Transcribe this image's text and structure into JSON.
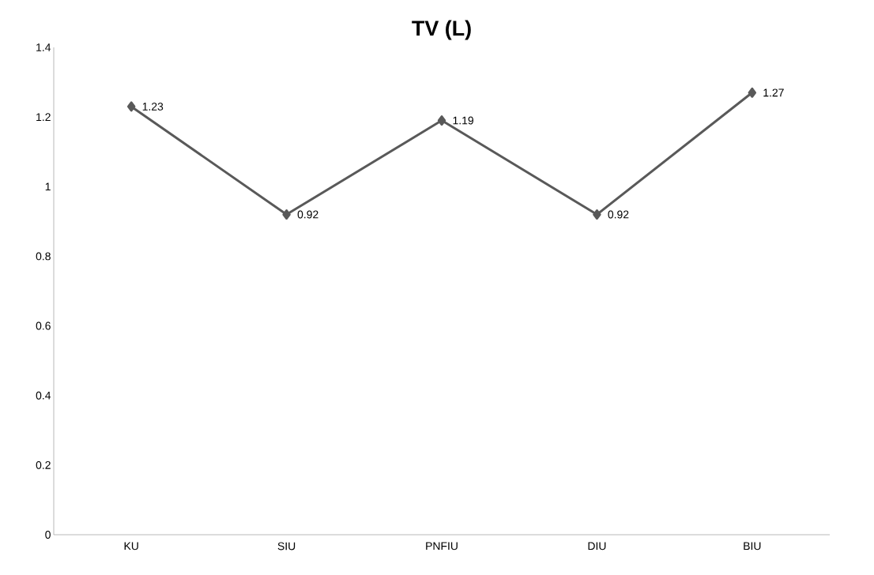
{
  "chart_data": {
    "type": "line",
    "title": "TV (L)",
    "categories": [
      "KU",
      "SIU",
      "PNFIU",
      "DIU",
      "BIU"
    ],
    "series": [
      {
        "color": "#595959",
        "values": [
          1.23,
          0.92,
          1.19,
          0.92,
          1.27
        ]
      }
    ],
    "ylim": [
      0,
      1.4
    ],
    "yticks": [
      0,
      0.2,
      0.4,
      0.6,
      0.8,
      1,
      1.2,
      1.4
    ],
    "marker": "diamond",
    "line_style": "solid",
    "grid": false,
    "data_labels": true
  }
}
